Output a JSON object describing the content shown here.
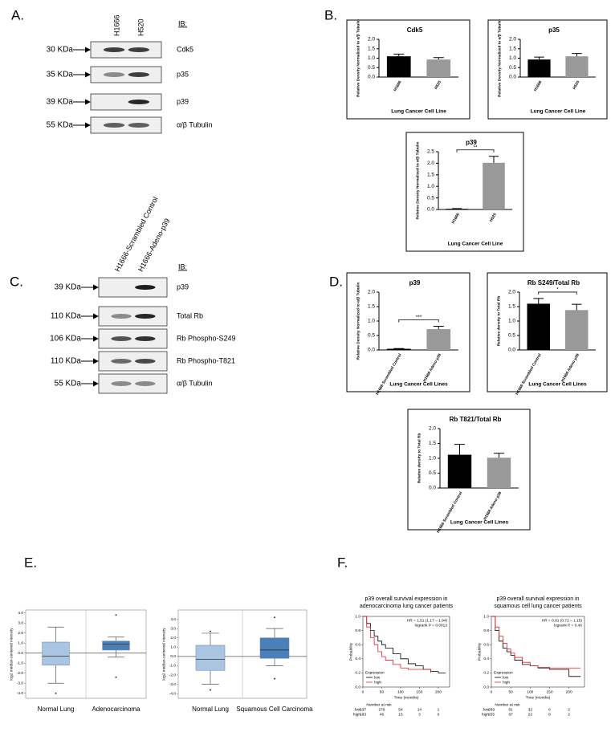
{
  "panel_labels": [
    "A.",
    "B.",
    "C.",
    "D.",
    "E.",
    "F."
  ],
  "blots": [
    {
      "lanes": [
        "H1666",
        "H520"
      ],
      "ib": "IB:",
      "rows": [
        {
          "marker": "30 KDa",
          "label": "Cdk5"
        },
        {
          "marker": "35 KDa",
          "label": "p35"
        },
        {
          "marker": "39 KDa",
          "label": "p39"
        },
        {
          "marker": "55 KDa",
          "label": "α/β Tubulin"
        }
      ]
    },
    {
      "lanes": [
        "H1666-Scrambled Control",
        "H1666-Adeno-p39"
      ],
      "ib": "IB:",
      "rows": [
        {
          "marker": "39 KDa",
          "label": "p39"
        },
        {
          "marker": "110 KDa",
          "label": "Total Rb"
        },
        {
          "marker": "106 KDa",
          "label": "Rb Phospho-S249"
        },
        {
          "marker": "110 KDa",
          "label": "Rb Phospho-T821"
        },
        {
          "marker": "55 KDa",
          "label": "α/β Tubulin"
        }
      ]
    }
  ],
  "chart_data": [
    {
      "type": "bar",
      "title": "Cdk5",
      "categories": [
        "H1666",
        "H520"
      ],
      "values": [
        1.1,
        0.93
      ],
      "errors": [
        0.12,
        0.1
      ],
      "colors": [
        "#000000",
        "#999999"
      ],
      "ylim": [
        0,
        2
      ],
      "yticks": [
        {
          "value": 0,
          "label": "0.0"
        },
        0.5,
        {
          "value": 1,
          "label": "1.0"
        },
        1.5,
        {
          "value": 2,
          "label": "2.0"
        }
      ],
      "ylabel": "Relative Density Normalized to α/β Tubulin",
      "xlabel": "Lung Cancer Cell Line"
    },
    {
      "type": "bar",
      "title": "p35",
      "categories": [
        "H1666",
        "H520"
      ],
      "values": [
        0.93,
        1.1
      ],
      "errors": [
        0.13,
        0.15
      ],
      "colors": [
        "#000000",
        "#999999"
      ],
      "ylim": [
        0,
        2
      ],
      "yticks": [
        {
          "value": 0,
          "label": "0.0"
        },
        0.5,
        {
          "value": 1,
          "label": "1.0"
        },
        1.5,
        {
          "value": 2,
          "label": "2.0"
        }
      ],
      "ylabel": "Relative Density Normalized to α/β Tubulin",
      "xlabel": "Lung Cancer Cell Line"
    },
    {
      "type": "bar",
      "title": "p39",
      "categories": [
        "H1666",
        "H520"
      ],
      "values": [
        0.03,
        2.02
      ],
      "errors": [
        0.01,
        0.28
      ],
      "colors": [
        "#000000",
        "#999999"
      ],
      "ylim": [
        0,
        2.5
      ],
      "yticks": [
        {
          "value": 0,
          "label": "0.0"
        },
        0.5,
        {
          "value": 1,
          "label": "1.0"
        },
        1.5,
        {
          "value": 2,
          "label": "2.0"
        },
        2.5
      ],
      "ylabel": "Relative Density Normalized to α/β Tubulin",
      "xlabel": "Lung Cancer Cell Line",
      "annotation": "**"
    },
    {
      "type": "bar",
      "title": "p39",
      "categories": [
        "H1666 Scrambled Control",
        "H1666 Adeno p39"
      ],
      "values": [
        0.04,
        0.72
      ],
      "errors": [
        0.01,
        0.1
      ],
      "colors": [
        "#000000",
        "#999999"
      ],
      "ylim": [
        0,
        2
      ],
      "yticks": [
        {
          "value": 0,
          "label": "0.0"
        },
        0.5,
        {
          "value": 1,
          "label": "1.0"
        },
        1.5,
        {
          "value": 2,
          "label": "2.0"
        }
      ],
      "ylabel": "Relative Density Normalized to α/β Tubulin",
      "xlabel": "Lung Cancer Cell Lines",
      "annotation": "***"
    },
    {
      "type": "bar",
      "title": "Rb S249/Total Rb",
      "categories": [
        "H1666 Scrambled Control",
        "H1666 Adeno p39"
      ],
      "values": [
        1.6,
        1.38
      ],
      "errors": [
        0.18,
        0.2
      ],
      "colors": [
        "#000000",
        "#999999"
      ],
      "ylim": [
        0,
        2
      ],
      "yticks": [
        {
          "value": 0,
          "label": "0.0"
        },
        0.5,
        {
          "value": 1,
          "label": "1.0"
        },
        1.5,
        {
          "value": 2,
          "label": "2.0"
        }
      ],
      "ylabel": "Relative density to Total Rb",
      "xlabel": "Lung Cancer Cell Lines",
      "annotation": "*"
    },
    {
      "type": "bar",
      "title": "Rb T821/Total Rb",
      "categories": [
        "H1666 Scrambled Control",
        "H1666 Adeno p39"
      ],
      "values": [
        1.12,
        1.02
      ],
      "errors": [
        0.35,
        0.15
      ],
      "colors": [
        "#000000",
        "#999999"
      ],
      "ylim": [
        0,
        2
      ],
      "yticks": [
        {
          "value": 0,
          "label": "0.0"
        },
        0.5,
        {
          "value": 1,
          "label": "1.0"
        },
        1.5,
        {
          "value": 2,
          "label": "2.0"
        }
      ],
      "ylabel": "Relative density to Total Rb",
      "xlabel": "Lung Cancer Cell Lines"
    },
    {
      "type": "box",
      "categories": [
        "Normal Lung",
        "Adenocarcinoma"
      ],
      "colors": [
        "#aac5e2",
        "#4a7fb8"
      ],
      "boxes": [
        {
          "low": -3.0,
          "q1": -1.2,
          "median": -0.3,
          "q3": 1.1,
          "high": 2.6,
          "outliers": [
            -4.0
          ]
        },
        {
          "low": -0.4,
          "q1": 0.3,
          "median": 0.9,
          "q3": 1.2,
          "high": 1.6,
          "outliers": [
            3.8,
            -2.4
          ]
        }
      ],
      "ylim": [
        -4.5,
        4.3
      ],
      "yticks": [
        {
          "value": -4,
          "label": "-4.0"
        },
        {
          "value": -3,
          "label": "-3.0"
        },
        {
          "value": -2,
          "label": "-2.0"
        },
        {
          "value": -1,
          "label": "-1.0"
        },
        {
          "value": 0,
          "label": "0.0"
        },
        {
          "value": 1,
          "label": "1.0"
        },
        {
          "value": 2,
          "label": "2.0"
        },
        {
          "value": 3,
          "label": "3.0"
        },
        {
          "value": 4,
          "label": "4.0"
        }
      ],
      "ylabel": "log2 median-centered intensity"
    },
    {
      "type": "box",
      "categories": [
        "Normal Lung",
        "Squamous Cell Carcinoma"
      ],
      "colors": [
        "#aac5e2",
        "#4a7fb8"
      ],
      "boxes": [
        {
          "low": -3.0,
          "q1": -1.5,
          "median": -0.3,
          "q3": 1.2,
          "high": 2.5,
          "outliers": [
            -3.6,
            2.7
          ]
        },
        {
          "low": -1.0,
          "q1": -0.2,
          "median": 0.7,
          "q3": 2.0,
          "high": 3.0,
          "outliers": [
            4.2,
            -2.4
          ]
        }
      ],
      "ylim": [
        -4.5,
        5
      ],
      "yticks": [
        {
          "value": -4,
          "label": "-4.0"
        },
        {
          "value": -3,
          "label": "-3.0"
        },
        {
          "value": -2,
          "label": "-2.0"
        },
        {
          "value": -1,
          "label": "-1.0"
        },
        {
          "value": 0,
          "label": "0.0"
        },
        {
          "value": 1,
          "label": "1.0"
        },
        {
          "value": 2,
          "label": "2.0"
        },
        {
          "value": 3,
          "label": "3.0"
        },
        {
          "value": 4,
          "label": "4.0"
        }
      ],
      "ylabel": "log2 median-centered intensity"
    },
    {
      "type": "line",
      "title": [
        "p39 overall survival expression in",
        "adenocarcinoma lung cancer patients"
      ],
      "annotation": [
        "HR = 1.51 (1.17 – 1.94)",
        "logrank P = 0.0013"
      ],
      "series": [
        {
          "name": "low",
          "color": "#000000",
          "x": [
            0,
            10,
            20,
            30,
            40,
            50,
            60,
            80,
            100,
            120,
            140,
            160,
            180,
            200,
            220
          ],
          "values": [
            1,
            0.9,
            0.8,
            0.72,
            0.65,
            0.6,
            0.55,
            0.47,
            0.4,
            0.33,
            0.3,
            0.25,
            0.22,
            0.2,
            0.2
          ]
        },
        {
          "name": "high",
          "color": "#e0202a",
          "x": [
            0,
            10,
            20,
            30,
            40,
            50,
            60,
            80,
            100,
            120,
            140,
            160,
            180
          ],
          "values": [
            1,
            0.85,
            0.7,
            0.6,
            0.5,
            0.43,
            0.38,
            0.32,
            0.27,
            0.25,
            0.25,
            0.25,
            0.2
          ]
        }
      ],
      "xlim": [
        0,
        230
      ],
      "ylim": [
        0,
        1
      ],
      "xticks": [
        0,
        50,
        100,
        150,
        200
      ],
      "yticks": [
        {
          "value": 0,
          "label": "0.0"
        },
        0.2,
        0.4,
        0.6,
        0.8,
        {
          "value": 1,
          "label": "1.0"
        }
      ],
      "xlabel": "Time (months)",
      "ylabel": "Probability",
      "legend_title": "Expression",
      "risk_table": {
        "title": "Number at risk",
        "rows": [
          {
            "name": "low",
            "values": [
              537,
              279,
              54,
              14,
              1
            ]
          },
          {
            "name": "high",
            "values": [
              183,
              46,
              15,
              3,
              0
            ]
          }
        ]
      }
    },
    {
      "type": "line",
      "title": [
        "p39 overall survival expression in",
        "squamous cell lung cancer patients"
      ],
      "annotation": [
        "HR = 0.91 (0.72 – 1.15)",
        "logrank P = 0.46"
      ],
      "series": [
        {
          "name": "low",
          "color": "#000000",
          "x": [
            0,
            10,
            20,
            30,
            40,
            50,
            60,
            80,
            100,
            120,
            150,
            200,
            230
          ],
          "values": [
            1,
            0.8,
            0.65,
            0.55,
            0.5,
            0.45,
            0.38,
            0.32,
            0.3,
            0.27,
            0.25,
            0.15,
            0.15
          ]
        },
        {
          "name": "high",
          "color": "#e0202a",
          "x": [
            0,
            10,
            20,
            30,
            40,
            50,
            60,
            80,
            100,
            120,
            150,
            200,
            230
          ],
          "values": [
            1,
            0.85,
            0.72,
            0.62,
            0.54,
            0.48,
            0.42,
            0.35,
            0.3,
            0.28,
            0.27,
            0.27,
            0.27
          ]
        }
      ],
      "xlim": [
        0,
        240
      ],
      "ylim": [
        0,
        1
      ],
      "xticks": [
        0,
        50,
        100,
        150,
        200
      ],
      "yticks": [
        {
          "value": 0,
          "label": "0.0"
        },
        0.2,
        0.4,
        0.6,
        0.8,
        {
          "value": 1,
          "label": "1.0"
        }
      ],
      "xlabel": "Time (months)",
      "ylabel": "Probability",
      "legend_title": "Expression",
      "risk_table": {
        "title": "Number at risk",
        "rows": [
          {
            "name": "low",
            "values": [
              269,
              61,
              32,
              6,
              2
            ]
          },
          {
            "name": "high",
            "values": [
              255,
              67,
              22,
              9,
              2
            ]
          }
        ]
      }
    }
  ]
}
